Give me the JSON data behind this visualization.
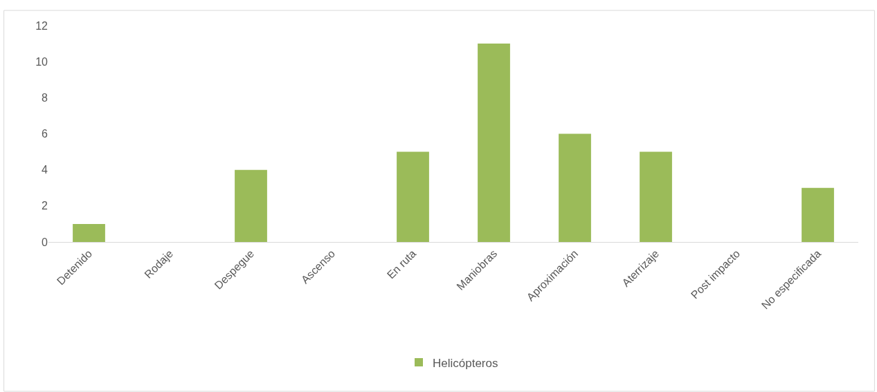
{
  "chart_data": {
    "type": "bar",
    "categories": [
      "Detenido",
      "Rodaje",
      "Despegue",
      "Ascenso",
      "En ruta",
      "Maniobras",
      "Aproximación",
      "Aterrizaje",
      "Post impacto",
      "No especificada"
    ],
    "series": [
      {
        "name": "Helicópteros",
        "color": "#9bbb59",
        "values": [
          1,
          0,
          4,
          0,
          5,
          11,
          6,
          5,
          0,
          3
        ]
      }
    ],
    "ylim": [
      0,
      12
    ],
    "yticks": [
      0,
      2,
      4,
      6,
      8,
      10,
      12
    ],
    "legend": "bottom"
  }
}
